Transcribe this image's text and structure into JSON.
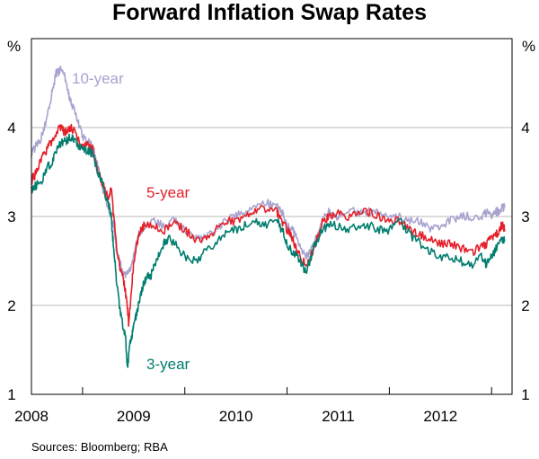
{
  "chart_data": {
    "type": "line",
    "title": "Forward Inflation Swap Rates",
    "ylabel_left": "%",
    "ylabel_right": "%",
    "ylim": [
      1,
      5
    ],
    "yticks": [
      1,
      2,
      3,
      4
    ],
    "xlim": [
      2007.5,
      2012.2
    ],
    "x_tick_positions": [
      2008,
      2009,
      2010,
      2011,
      2012
    ],
    "x_tick_labels": [
      "2008",
      "2009",
      "2010",
      "2011",
      "2012"
    ],
    "grid": true,
    "source": "Sources: Bloomberg; RBA",
    "series": [
      {
        "name": "10-year",
        "label": "10-year",
        "color": "#a7a3cf",
        "points": [
          [
            2007.5,
            3.7
          ],
          [
            2007.55,
            3.8
          ],
          [
            2007.6,
            3.9
          ],
          [
            2007.65,
            4.1
          ],
          [
            2007.7,
            4.4
          ],
          [
            2007.74,
            4.6
          ],
          [
            2007.78,
            4.65
          ],
          [
            2007.82,
            4.6
          ],
          [
            2007.85,
            4.45
          ],
          [
            2007.88,
            4.3
          ],
          [
            2007.92,
            4.2
          ],
          [
            2007.96,
            4.05
          ],
          [
            2008.0,
            3.9
          ],
          [
            2008.05,
            3.85
          ],
          [
            2008.1,
            3.8
          ],
          [
            2008.15,
            3.55
          ],
          [
            2008.2,
            3.3
          ],
          [
            2008.25,
            3.1
          ],
          [
            2008.3,
            2.9
          ],
          [
            2008.33,
            2.65
          ],
          [
            2008.37,
            2.45
          ],
          [
            2008.4,
            2.35
          ],
          [
            2008.45,
            2.35
          ],
          [
            2008.5,
            2.55
          ],
          [
            2008.55,
            2.8
          ],
          [
            2008.6,
            2.9
          ],
          [
            2008.7,
            2.95
          ],
          [
            2008.8,
            2.9
          ],
          [
            2008.9,
            2.95
          ],
          [
            2009.0,
            2.85
          ],
          [
            2009.1,
            2.8
          ],
          [
            2009.2,
            2.75
          ],
          [
            2009.3,
            2.85
          ],
          [
            2009.4,
            2.95
          ],
          [
            2009.5,
            3.0
          ],
          [
            2009.6,
            3.05
          ],
          [
            2009.7,
            3.1
          ],
          [
            2009.8,
            3.15
          ],
          [
            2009.9,
            3.1
          ],
          [
            2009.95,
            3.05
          ],
          [
            2010.0,
            2.9
          ],
          [
            2010.05,
            2.85
          ],
          [
            2010.1,
            2.75
          ],
          [
            2010.15,
            2.6
          ],
          [
            2010.2,
            2.55
          ],
          [
            2010.25,
            2.65
          ],
          [
            2010.3,
            2.8
          ],
          [
            2010.35,
            2.95
          ],
          [
            2010.4,
            3.05
          ],
          [
            2010.45,
            3.0
          ],
          [
            2010.5,
            3.0
          ],
          [
            2010.6,
            3.05
          ],
          [
            2010.7,
            3.05
          ],
          [
            2010.8,
            3.05
          ],
          [
            2010.9,
            3.05
          ],
          [
            2011.0,
            3.0
          ],
          [
            2011.1,
            3.0
          ],
          [
            2011.2,
            2.95
          ],
          [
            2011.3,
            2.95
          ],
          [
            2011.4,
            2.85
          ],
          [
            2011.5,
            2.9
          ],
          [
            2011.6,
            2.95
          ],
          [
            2011.7,
            3.0
          ],
          [
            2011.8,
            3.0
          ],
          [
            2011.9,
            3.0
          ],
          [
            2011.95,
            3.05
          ],
          [
            2012.0,
            3.0
          ],
          [
            2012.05,
            3.05
          ],
          [
            2012.1,
            3.1
          ],
          [
            2012.13,
            3.1
          ]
        ]
      },
      {
        "name": "5-year",
        "label": "5-year",
        "color": "#e4202a",
        "points": [
          [
            2007.5,
            3.4
          ],
          [
            2007.55,
            3.5
          ],
          [
            2007.6,
            3.65
          ],
          [
            2007.65,
            3.75
          ],
          [
            2007.7,
            3.85
          ],
          [
            2007.74,
            3.95
          ],
          [
            2007.78,
            4.0
          ],
          [
            2007.82,
            3.95
          ],
          [
            2007.85,
            3.95
          ],
          [
            2007.88,
            4.0
          ],
          [
            2007.92,
            3.95
          ],
          [
            2007.96,
            3.85
          ],
          [
            2008.0,
            3.8
          ],
          [
            2008.05,
            3.8
          ],
          [
            2008.1,
            3.75
          ],
          [
            2008.15,
            3.5
          ],
          [
            2008.2,
            3.35
          ],
          [
            2008.25,
            3.2
          ],
          [
            2008.28,
            3.3
          ],
          [
            2008.3,
            3.05
          ],
          [
            2008.33,
            2.7
          ],
          [
            2008.37,
            2.4
          ],
          [
            2008.4,
            2.3
          ],
          [
            2008.43,
            2.05
          ],
          [
            2008.45,
            1.8
          ],
          [
            2008.48,
            2.2
          ],
          [
            2008.5,
            2.5
          ],
          [
            2008.55,
            2.8
          ],
          [
            2008.6,
            2.9
          ],
          [
            2008.7,
            2.9
          ],
          [
            2008.8,
            2.85
          ],
          [
            2008.9,
            2.95
          ],
          [
            2009.0,
            2.85
          ],
          [
            2009.1,
            2.75
          ],
          [
            2009.2,
            2.75
          ],
          [
            2009.3,
            2.85
          ],
          [
            2009.4,
            2.95
          ],
          [
            2009.5,
            2.95
          ],
          [
            2009.6,
            3.0
          ],
          [
            2009.7,
            3.05
          ],
          [
            2009.8,
            3.1
          ],
          [
            2009.9,
            3.05
          ],
          [
            2009.95,
            2.95
          ],
          [
            2010.0,
            2.85
          ],
          [
            2010.05,
            2.75
          ],
          [
            2010.1,
            2.6
          ],
          [
            2010.15,
            2.5
          ],
          [
            2010.2,
            2.45
          ],
          [
            2010.25,
            2.6
          ],
          [
            2010.3,
            2.8
          ],
          [
            2010.35,
            2.95
          ],
          [
            2010.4,
            3.0
          ],
          [
            2010.5,
            3.05
          ],
          [
            2010.6,
            3.0
          ],
          [
            2010.7,
            3.05
          ],
          [
            2010.8,
            3.05
          ],
          [
            2010.9,
            3.0
          ],
          [
            2011.0,
            2.95
          ],
          [
            2011.1,
            2.95
          ],
          [
            2011.2,
            2.85
          ],
          [
            2011.3,
            2.8
          ],
          [
            2011.4,
            2.75
          ],
          [
            2011.5,
            2.7
          ],
          [
            2011.6,
            2.7
          ],
          [
            2011.7,
            2.65
          ],
          [
            2011.8,
            2.6
          ],
          [
            2011.9,
            2.65
          ],
          [
            2011.95,
            2.7
          ],
          [
            2012.0,
            2.75
          ],
          [
            2012.05,
            2.8
          ],
          [
            2012.1,
            2.9
          ],
          [
            2012.13,
            2.85
          ]
        ]
      },
      {
        "name": "3-year",
        "label": "3-year",
        "color": "#007d6e",
        "points": [
          [
            2007.5,
            3.3
          ],
          [
            2007.55,
            3.35
          ],
          [
            2007.6,
            3.4
          ],
          [
            2007.65,
            3.55
          ],
          [
            2007.7,
            3.6
          ],
          [
            2007.74,
            3.75
          ],
          [
            2007.78,
            3.8
          ],
          [
            2007.82,
            3.85
          ],
          [
            2007.85,
            3.85
          ],
          [
            2007.88,
            3.9
          ],
          [
            2007.92,
            3.85
          ],
          [
            2007.96,
            3.8
          ],
          [
            2008.0,
            3.75
          ],
          [
            2008.05,
            3.75
          ],
          [
            2008.1,
            3.7
          ],
          [
            2008.15,
            3.5
          ],
          [
            2008.2,
            3.35
          ],
          [
            2008.25,
            3.15
          ],
          [
            2008.28,
            3.0
          ],
          [
            2008.3,
            2.7
          ],
          [
            2008.33,
            2.3
          ],
          [
            2008.36,
            2.0
          ],
          [
            2008.39,
            1.8
          ],
          [
            2008.42,
            1.65
          ],
          [
            2008.44,
            1.3
          ],
          [
            2008.46,
            1.55
          ],
          [
            2008.48,
            1.65
          ],
          [
            2008.5,
            1.8
          ],
          [
            2008.53,
            1.9
          ],
          [
            2008.56,
            2.1
          ],
          [
            2008.6,
            2.25
          ],
          [
            2008.63,
            2.35
          ],
          [
            2008.66,
            2.3
          ],
          [
            2008.7,
            2.45
          ],
          [
            2008.75,
            2.6
          ],
          [
            2008.8,
            2.7
          ],
          [
            2008.85,
            2.75
          ],
          [
            2008.9,
            2.7
          ],
          [
            2009.0,
            2.55
          ],
          [
            2009.1,
            2.5
          ],
          [
            2009.2,
            2.6
          ],
          [
            2009.3,
            2.7
          ],
          [
            2009.4,
            2.8
          ],
          [
            2009.5,
            2.85
          ],
          [
            2009.6,
            2.9
          ],
          [
            2009.7,
            2.95
          ],
          [
            2009.8,
            2.9
          ],
          [
            2009.9,
            2.95
          ],
          [
            2009.95,
            2.85
          ],
          [
            2010.0,
            2.7
          ],
          [
            2010.05,
            2.6
          ],
          [
            2010.1,
            2.55
          ],
          [
            2010.15,
            2.45
          ],
          [
            2010.18,
            2.38
          ],
          [
            2010.22,
            2.5
          ],
          [
            2010.28,
            2.7
          ],
          [
            2010.35,
            2.85
          ],
          [
            2010.4,
            2.9
          ],
          [
            2010.5,
            2.9
          ],
          [
            2010.6,
            2.85
          ],
          [
            2010.7,
            2.9
          ],
          [
            2010.8,
            2.9
          ],
          [
            2010.9,
            2.85
          ],
          [
            2011.0,
            2.85
          ],
          [
            2011.1,
            2.95
          ],
          [
            2011.2,
            2.8
          ],
          [
            2011.3,
            2.7
          ],
          [
            2011.4,
            2.6
          ],
          [
            2011.5,
            2.55
          ],
          [
            2011.6,
            2.55
          ],
          [
            2011.7,
            2.5
          ],
          [
            2011.8,
            2.45
          ],
          [
            2011.9,
            2.55
          ],
          [
            2011.95,
            2.45
          ],
          [
            2012.0,
            2.55
          ],
          [
            2012.05,
            2.65
          ],
          [
            2012.1,
            2.75
          ],
          [
            2012.13,
            2.72
          ]
        ]
      }
    ]
  }
}
